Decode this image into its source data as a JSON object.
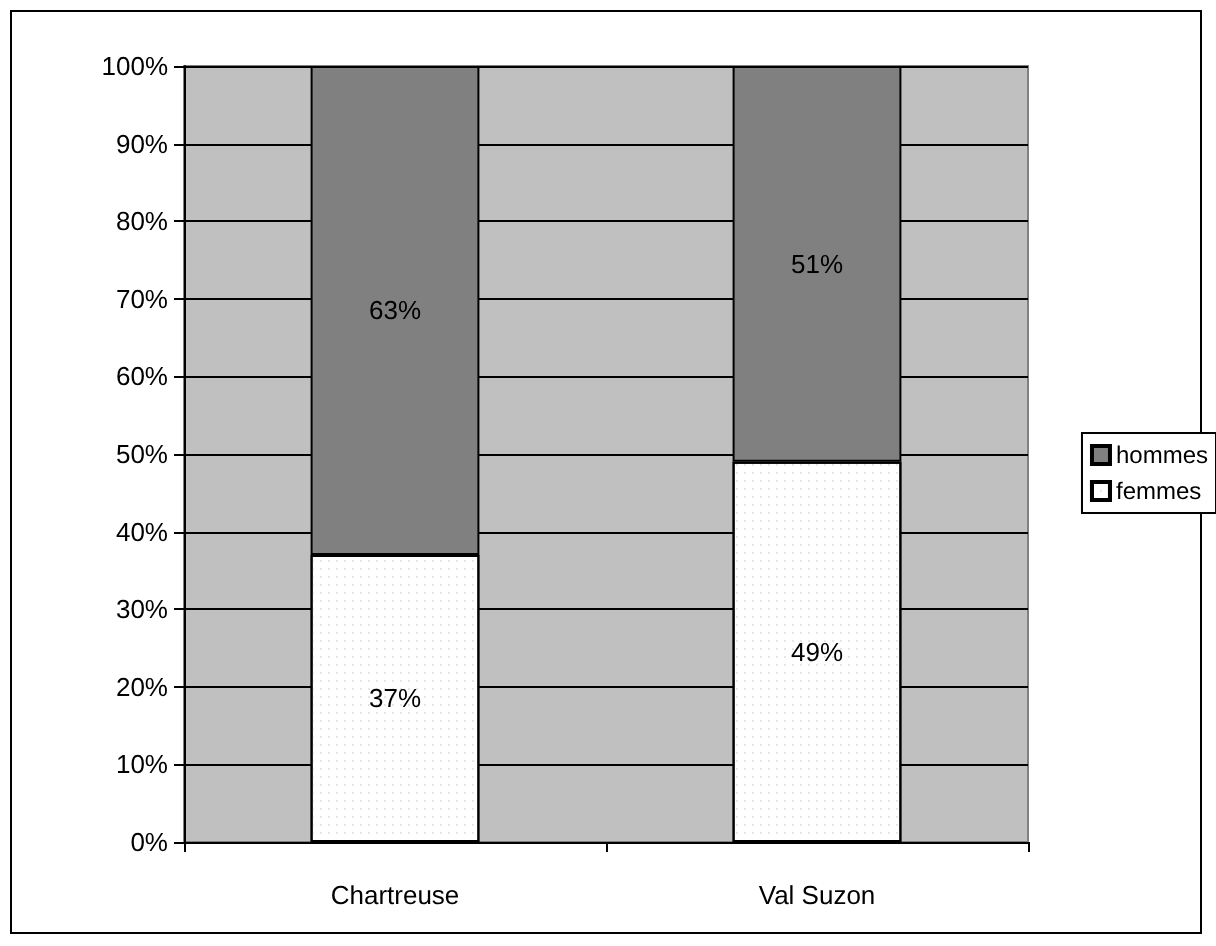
{
  "chart_data": {
    "type": "bar",
    "categories": [
      "Chartreuse",
      "Val Suzon"
    ],
    "stacked": true,
    "series": [
      {
        "name": "femmes",
        "color": "#ffffff",
        "values": [
          37,
          49
        ],
        "value_labels": [
          "37%",
          "49%"
        ]
      },
      {
        "name": "hommes",
        "color": "#808080",
        "values": [
          63,
          51
        ],
        "value_labels": [
          "63%",
          "51%"
        ]
      }
    ],
    "ylim": [
      0,
      100
    ],
    "yticks": [
      {
        "value": 0,
        "label": "0%"
      },
      {
        "value": 10,
        "label": "10%"
      },
      {
        "value": 20,
        "label": "20%"
      },
      {
        "value": 30,
        "label": "30%"
      },
      {
        "value": 40,
        "label": "40%"
      },
      {
        "value": 50,
        "label": "50%"
      },
      {
        "value": 60,
        "label": "60%"
      },
      {
        "value": 70,
        "label": "70%"
      },
      {
        "value": 80,
        "label": "80%"
      },
      {
        "value": 90,
        "label": "90%"
      },
      {
        "value": 100,
        "label": "100%"
      }
    ],
    "grid": "y",
    "legend": "right"
  }
}
